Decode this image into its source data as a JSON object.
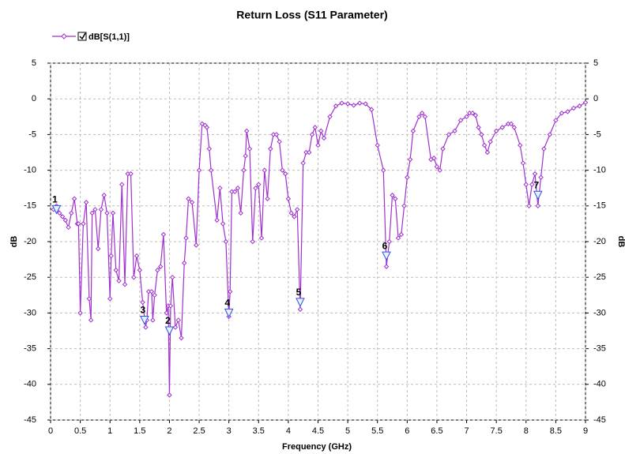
{
  "chart_data": {
    "type": "line",
    "title": "Return Loss (S11 Parameter)",
    "x_label": "Frequency (GHz)",
    "y_label": "dB",
    "y2_label": "dB",
    "xlim": [
      0,
      9
    ],
    "xticks": [
      0,
      0.5,
      1,
      1.5,
      2,
      2.5,
      3,
      3.5,
      4,
      4.5,
      5,
      5.5,
      6,
      6.5,
      7,
      7.5,
      8,
      8.5,
      9
    ],
    "ylim": [
      -45,
      5
    ],
    "yticks": [
      -45,
      -40,
      -35,
      -30,
      -25,
      -20,
      -15,
      -10,
      -5,
      0,
      5
    ],
    "y2lim": [
      -45,
      5
    ],
    "y2ticks": [
      -45,
      -40,
      -35,
      -30,
      -25,
      -20,
      -15,
      -10,
      -5,
      0,
      5
    ],
    "grid": true,
    "x": [
      0.05,
      0.1,
      0.15,
      0.2,
      0.25,
      0.3,
      0.35,
      0.4,
      0.45,
      0.47,
      0.5,
      0.55,
      0.6,
      0.65,
      0.68,
      0.7,
      0.75,
      0.8,
      0.85,
      0.9,
      0.95,
      1.0,
      1.02,
      1.05,
      1.1,
      1.15,
      1.2,
      1.25,
      1.3,
      1.35,
      1.4,
      1.45,
      1.5,
      1.55,
      1.6,
      1.62,
      1.65,
      1.7,
      1.72,
      1.75,
      1.8,
      1.85,
      1.9,
      1.95,
      1.98,
      2.0,
      2.02,
      2.05,
      2.1,
      2.15,
      2.2,
      2.25,
      2.28,
      2.32,
      2.38,
      2.45,
      2.5,
      2.55,
      2.6,
      2.63,
      2.67,
      2.7,
      2.8,
      2.85,
      2.9,
      2.95,
      3.0,
      3.02,
      3.05,
      3.1,
      3.15,
      3.2,
      3.25,
      3.28,
      3.3,
      3.35,
      3.4,
      3.45,
      3.5,
      3.55,
      3.6,
      3.65,
      3.7,
      3.75,
      3.8,
      3.85,
      3.9,
      3.95,
      4.0,
      4.05,
      4.1,
      4.15,
      4.2,
      4.25,
      4.3,
      4.35,
      4.4,
      4.45,
      4.5,
      4.55,
      4.6,
      4.7,
      4.8,
      4.9,
      5.0,
      5.1,
      5.2,
      5.3,
      5.4,
      5.5,
      5.6,
      5.65,
      5.7,
      5.75,
      5.8,
      5.85,
      5.9,
      5.95,
      6.0,
      6.05,
      6.1,
      6.2,
      6.25,
      6.3,
      6.4,
      6.45,
      6.5,
      6.55,
      6.6,
      6.7,
      6.8,
      6.9,
      7.0,
      7.05,
      7.1,
      7.15,
      7.2,
      7.25,
      7.3,
      7.35,
      7.4,
      7.5,
      7.6,
      7.7,
      7.75,
      7.8,
      7.9,
      7.95,
      8.0,
      8.05,
      8.1,
      8.15,
      8.2,
      8.25,
      8.3,
      8.4,
      8.5,
      8.6,
      8.7,
      8.8,
      8.9,
      9.0
    ],
    "series": [
      {
        "name": "dB[S(1,1)]",
        "color": "#a030d0",
        "values": [
          -15.5,
          -15,
          -16,
          -16.5,
          -17,
          -18,
          -16,
          -14,
          -17.5,
          -17.5,
          -30,
          -17.5,
          -14.5,
          -28,
          -31,
          -16,
          -15.5,
          -21,
          -15.5,
          -13.5,
          -16,
          -28,
          -22,
          -16,
          -24,
          -25.5,
          -12,
          -26,
          -10.5,
          -10.5,
          -25,
          -22,
          -24,
          -28.5,
          -32,
          -31,
          -27,
          -27,
          -31,
          -27.5,
          -24,
          -23.5,
          -19,
          -30,
          -29,
          -41.5,
          -29,
          -25,
          -32,
          -31,
          -33.5,
          -23,
          -19.5,
          -14,
          -14.5,
          -20.5,
          -10,
          -3.5,
          -3.7,
          -4,
          -7,
          -10,
          -17,
          -12.5,
          -17.5,
          -20,
          -30.5,
          -27,
          -13,
          -13,
          -12.5,
          -16,
          -10,
          -8,
          -4.5,
          -7,
          -20,
          -12.5,
          -12,
          -19.5,
          -10,
          -14,
          -7,
          -5,
          -5,
          -6,
          -10,
          -10.5,
          -14,
          -16,
          -16.5,
          -15.5,
          -29.5,
          -9,
          -7.5,
          -7.5,
          -5,
          -4,
          -6.5,
          -4.5,
          -5.5,
          -2.5,
          -1,
          -0.6,
          -0.7,
          -0.9,
          -0.6,
          -0.7,
          -1.5,
          -6.5,
          -10,
          -23.5,
          -20,
          -13.5,
          -14,
          -19.5,
          -19,
          -15,
          -11,
          -8.5,
          -4.5,
          -2.5,
          -2,
          -2.5,
          -8.5,
          -8.3,
          -9.5,
          -10,
          -7,
          -5,
          -4.5,
          -3,
          -2.5,
          -2,
          -2,
          -2.3,
          -4,
          -5,
          -6.5,
          -7.5,
          -6,
          -4.5,
          -4,
          -3.5,
          -3.5,
          -4,
          -6.5,
          -9,
          -12,
          -15,
          -12,
          -10.5,
          -15,
          -11,
          -7,
          -5,
          -3,
          -2,
          -1.8,
          -1.3,
          -1,
          -0.5
        ]
      }
    ],
    "markers": [
      {
        "label": "1",
        "x": 0.1,
        "y": -15.5
      },
      {
        "label": "2",
        "x": 2.0,
        "y": -32.5
      },
      {
        "label": "3",
        "x": 1.58,
        "y": -31
      },
      {
        "label": "4",
        "x": 3.0,
        "y": -30
      },
      {
        "label": "5",
        "x": 4.2,
        "y": -28.5
      },
      {
        "label": "6",
        "x": 5.65,
        "y": -22
      },
      {
        "label": "7",
        "x": 8.2,
        "y": -13.5
      }
    ]
  }
}
